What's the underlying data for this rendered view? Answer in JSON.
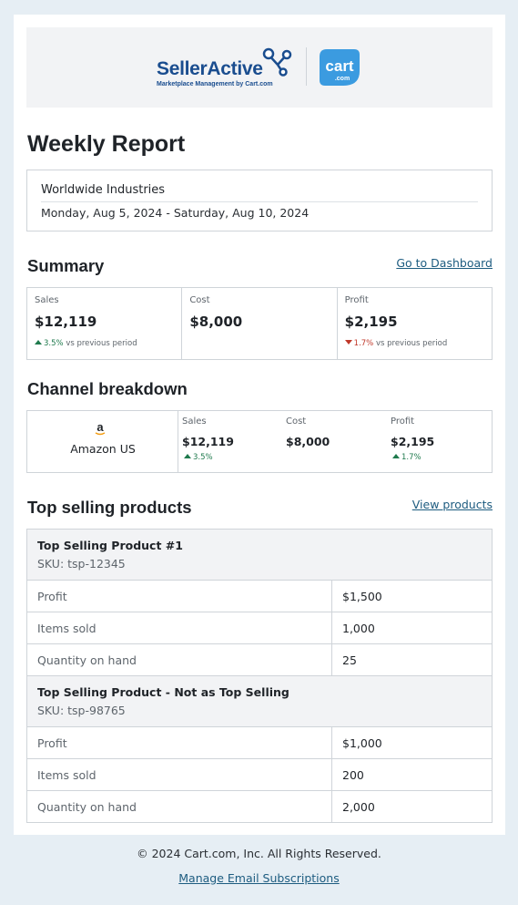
{
  "header": {
    "brand_name": "SellerActive",
    "brand_tagline": "Marketplace Management by Cart.com",
    "partner_logo_text": "cart",
    "partner_logo_sub": ".com"
  },
  "report": {
    "title": "Weekly Report",
    "organization": "Worldwide Industries",
    "date_range": "Monday, Aug 5, 2024 - Saturday, Aug 10, 2024"
  },
  "summary": {
    "title": "Summary",
    "dashboard_link": "Go to Dashboard",
    "metrics": [
      {
        "label": "Sales",
        "value": "$12,119",
        "change": "3.5%",
        "direction": "up",
        "suffix": "vs previous period"
      },
      {
        "label": "Cost",
        "value": "$8,000",
        "change": "",
        "direction": "",
        "suffix": ""
      },
      {
        "label": "Profit",
        "value": "$2,195",
        "change": "1.7%",
        "direction": "down",
        "suffix": "vs previous period"
      }
    ]
  },
  "channels": {
    "title": "Channel breakdown",
    "rows": [
      {
        "name": "Amazon US",
        "icon": "amazon-icon",
        "sales_label": "Sales",
        "sales_value": "$12,119",
        "sales_change": "3.5%",
        "cost_label": "Cost",
        "cost_value": "$8,000",
        "profit_label": "Profit",
        "profit_value": "$2,195",
        "profit_change": "1.7%"
      }
    ]
  },
  "products": {
    "title": "Top selling products",
    "view_link": "View products",
    "items": [
      {
        "name": "Top Selling Product #1",
        "sku": "SKU: tsp-12345",
        "rows": [
          {
            "label": "Profit",
            "value": "$1,500"
          },
          {
            "label": "Items sold",
            "value": "1,000"
          },
          {
            "label": "Quantity on hand",
            "value": "25"
          }
        ]
      },
      {
        "name": "Top Selling Product - Not as Top Selling",
        "sku": "SKU: tsp-98765",
        "rows": [
          {
            "label": "Profit",
            "value": "$1,000"
          },
          {
            "label": "Items sold",
            "value": "200"
          },
          {
            "label": "Quantity on hand",
            "value": "2,000"
          }
        ]
      }
    ]
  },
  "footer": {
    "copyright": "© 2024 Cart.com, Inc. All Rights Reserved.",
    "manage_link": "Manage Email Subscriptions"
  },
  "colors": {
    "page_bg": "#e6eef4",
    "brand_blue": "#1a4d8f",
    "cart_blue": "#3b9be0",
    "link": "#1d5c80",
    "positive": "#1f7a4d",
    "negative": "#c0392b"
  }
}
